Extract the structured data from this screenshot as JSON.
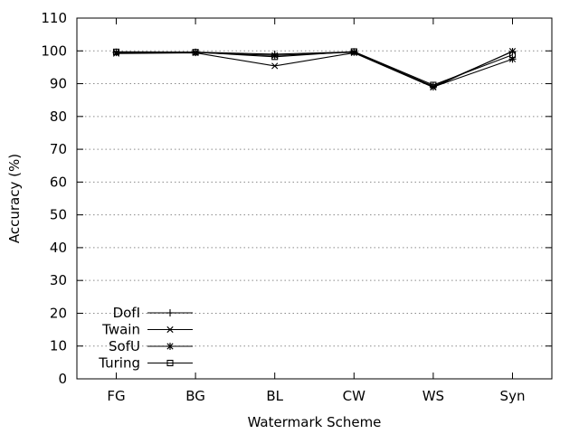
{
  "chart_data": {
    "type": "line",
    "xlabel": "Watermark Scheme",
    "ylabel": "Accuracy (%)",
    "ylim": [
      0,
      110
    ],
    "yticks": [
      0,
      10,
      20,
      30,
      40,
      50,
      60,
      70,
      80,
      90,
      100,
      110
    ],
    "grid": true,
    "legend_position": "bottom-left",
    "categories": [
      "FG",
      "BG",
      "BL",
      "CW",
      "WS",
      "Syn"
    ],
    "series": [
      {
        "name": "DofI",
        "marker": "plus",
        "values": [
          99.6,
          99.6,
          99.0,
          99.7,
          89.2,
          99.8
        ]
      },
      {
        "name": "Twain",
        "marker": "cross",
        "values": [
          99.2,
          99.4,
          95.4,
          99.4,
          88.9,
          99.9
        ]
      },
      {
        "name": "SofU",
        "marker": "star",
        "values": [
          99.5,
          99.5,
          98.6,
          99.6,
          89.0,
          97.5
        ]
      },
      {
        "name": "Turing",
        "marker": "square",
        "values": [
          99.7,
          99.6,
          98.2,
          99.8,
          89.6,
          98.8
        ]
      }
    ]
  }
}
